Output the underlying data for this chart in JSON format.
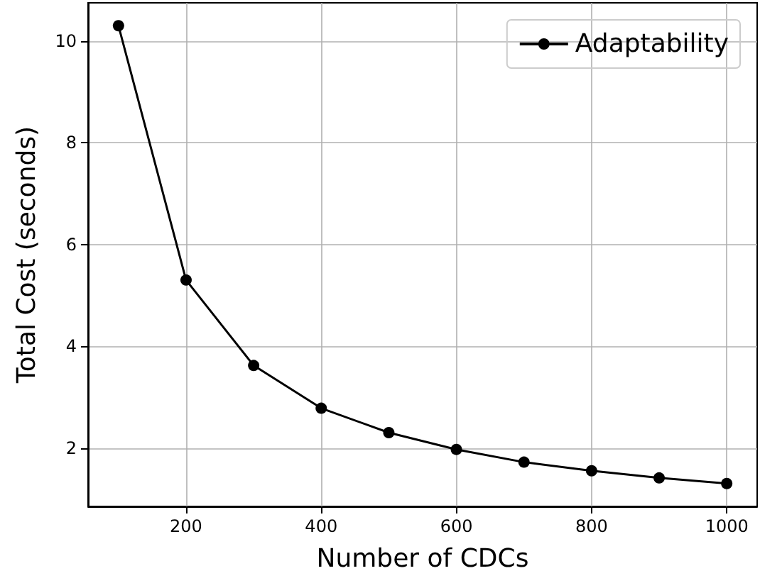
{
  "chart_data": {
    "type": "line",
    "xlabel": "Number of CDCs",
    "ylabel": "Total Cost (seconds)",
    "x": [
      100,
      200,
      300,
      400,
      500,
      600,
      700,
      800,
      900,
      1000
    ],
    "series": [
      {
        "name": "Adaptability",
        "color": "#000000",
        "values": [
          10.3,
          5.3,
          3.62,
          2.78,
          2.3,
          1.97,
          1.72,
          1.55,
          1.41,
          1.3
        ]
      }
    ],
    "xlim": [
      55,
      1045
    ],
    "xticks": [
      200,
      400,
      600,
      800,
      1000
    ],
    "ylim": [
      0.85,
      10.75
    ],
    "yticks": [
      2,
      4,
      6,
      8,
      10
    ],
    "grid": true,
    "legend": "top right",
    "marker": "circle",
    "line_style": "solid"
  }
}
